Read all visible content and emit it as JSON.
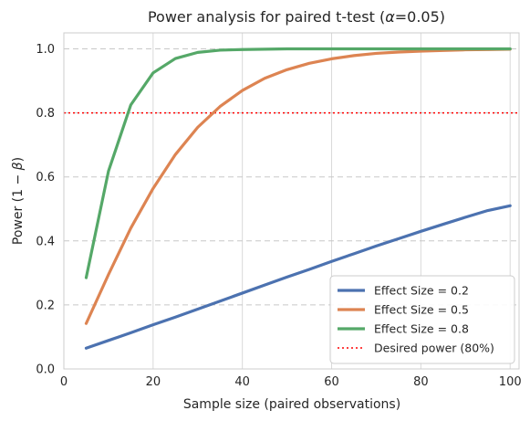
{
  "chart_data": {
    "type": "line",
    "title_prefix": "Power analysis for paired t-test (",
    "title_alpha": "α",
    "title_suffix": "=0.05)",
    "xlabel": "Sample size (paired observations)",
    "ylabel_prefix": "Power (1 − ",
    "ylabel_beta": "β",
    "ylabel_suffix": ")",
    "xlim": [
      0,
      102
    ],
    "ylim": [
      0,
      1.05
    ],
    "xticks": [
      0,
      20,
      40,
      60,
      80,
      100
    ],
    "yticks": [
      0.0,
      0.2,
      0.4,
      0.6,
      0.8,
      1.0
    ],
    "xtick_labels": [
      "0",
      "20",
      "40",
      "60",
      "80",
      "100"
    ],
    "ytick_labels": [
      "0.0",
      "0.2",
      "0.4",
      "0.6",
      "0.8",
      "1.0"
    ],
    "grid": true,
    "legend_position": "lower-right",
    "x": [
      5,
      10,
      15,
      20,
      25,
      30,
      35,
      40,
      45,
      50,
      55,
      60,
      65,
      70,
      75,
      80,
      85,
      90,
      95,
      100
    ],
    "series": [
      {
        "name": "Effect Size = 0.2",
        "color": "#4c72b0",
        "values": [
          0.065,
          0.089,
          0.113,
          0.138,
          0.162,
          0.187,
          0.212,
          0.237,
          0.262,
          0.287,
          0.311,
          0.336,
          0.36,
          0.384,
          0.407,
          0.43,
          0.452,
          0.474,
          0.495,
          0.51
        ]
      },
      {
        "name": "Effect Size = 0.5",
        "color": "#dd8452",
        "values": [
          0.142,
          0.295,
          0.44,
          0.564,
          0.67,
          0.755,
          0.82,
          0.87,
          0.908,
          0.935,
          0.955,
          0.969,
          0.979,
          0.986,
          0.99,
          0.993,
          0.995,
          0.997,
          0.998,
          0.999
        ]
      },
      {
        "name": "Effect Size = 0.8",
        "color": "#55a868",
        "values": [
          0.285,
          0.618,
          0.825,
          0.925,
          0.97,
          0.989,
          0.996,
          0.998,
          0.999,
          1.0,
          1.0,
          1.0,
          1.0,
          1.0,
          1.0,
          1.0,
          1.0,
          1.0,
          1.0,
          1.0
        ]
      }
    ],
    "reference_line": {
      "name": "Desired power (80%)",
      "y": 0.8,
      "color": "#ff0000"
    }
  }
}
